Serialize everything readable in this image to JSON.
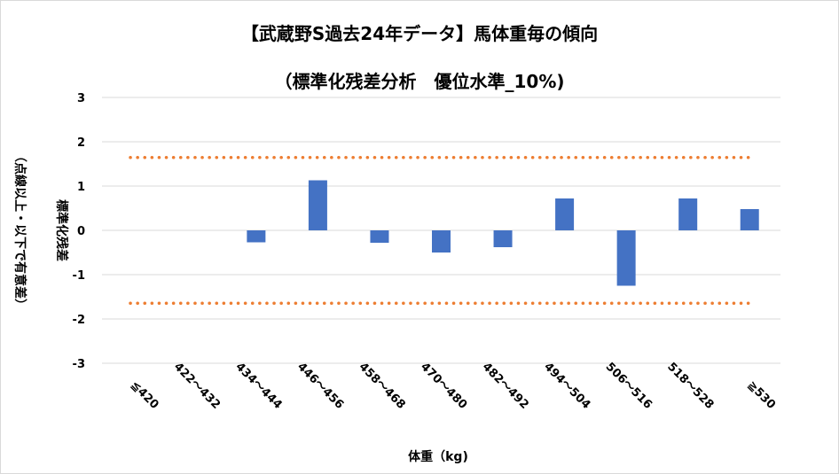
{
  "chart_data": {
    "type": "bar",
    "title": "【武蔵野S過去24年データ】馬体重毎の傾向",
    "subtitle": "（標準化残差分析　優位水準_10%)",
    "xlabel": "体重（kg)",
    "ylabel_outer": "（点線以上・以下で有意差）",
    "ylabel_inner": "標準化残差",
    "categories": [
      "≦420",
      "422～432",
      "434～444",
      "446～456",
      "458～468",
      "470～480",
      "482～492",
      "494～504",
      "506～516",
      "518～528",
      "≧530"
    ],
    "values": [
      0,
      0,
      -0.27,
      1.13,
      -0.28,
      -0.5,
      -0.38,
      0.72,
      -1.25,
      0.72,
      0.48
    ],
    "ylim": [
      -3,
      3
    ],
    "yticks": [
      "3",
      "2",
      "1",
      "0",
      "-1",
      "-2",
      "-3"
    ],
    "threshold": 1.645,
    "grid": true,
    "colors": {
      "bar": "#4472c4",
      "threshold": "#ed7d31",
      "grid": "#d9d9d9"
    }
  }
}
